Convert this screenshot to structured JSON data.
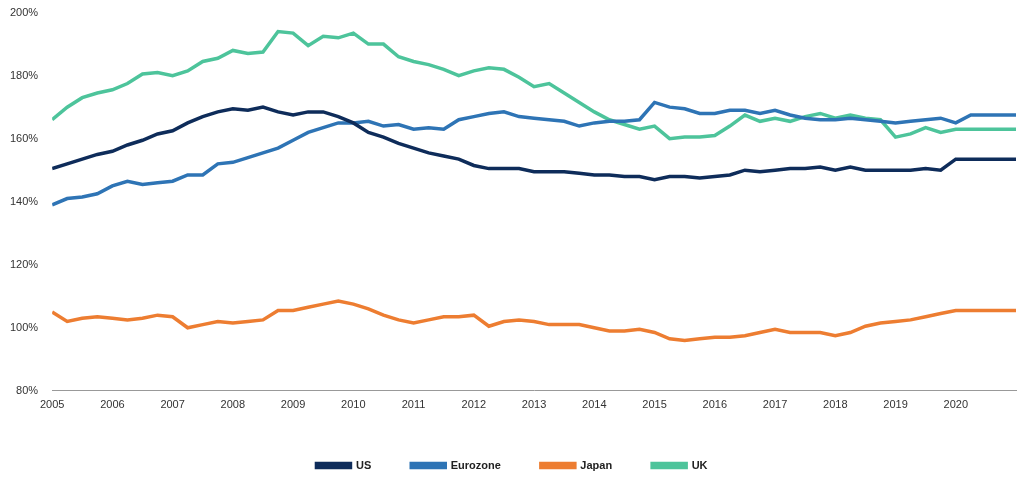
{
  "chart_data": {
    "type": "line",
    "categories": [
      "2005",
      null,
      null,
      null,
      "2006",
      null,
      null,
      null,
      "2007",
      null,
      null,
      null,
      "2008",
      null,
      null,
      null,
      "2009",
      null,
      null,
      null,
      "2010",
      null,
      null,
      null,
      "2011",
      null,
      null,
      null,
      "2012",
      null,
      null,
      null,
      "2013",
      null,
      null,
      null,
      "2014",
      null,
      null,
      null,
      "2015",
      null,
      null,
      null,
      "2016",
      null,
      null,
      null,
      "2017",
      null,
      null,
      null,
      "2018",
      null,
      null,
      null,
      "2019",
      null,
      null,
      null,
      "2020",
      null,
      null,
      null,
      null
    ],
    "series": [
      {
        "name": "US",
        "color": "#0e2c5a",
        "values": [
          150.5,
          152,
          153.5,
          155,
          156,
          158,
          159.5,
          161.5,
          162.5,
          165,
          167,
          168.5,
          169.5,
          169,
          170,
          168.5,
          167.5,
          168.5,
          168.5,
          167,
          165,
          162,
          160.5,
          158.5,
          157,
          155.5,
          154.5,
          153.5,
          151.5,
          150.5,
          150.5,
          150.5,
          149.5,
          149.5,
          149.5,
          149,
          148.5,
          148.5,
          148,
          148,
          147,
          148,
          148,
          147.5,
          148,
          148.5,
          150,
          149.5,
          150,
          150.5,
          150.5,
          151,
          150,
          151,
          150,
          150,
          150,
          150,
          150.5,
          150,
          153.5,
          153.5,
          153.5,
          153.5,
          153.5
        ]
      },
      {
        "name": "Eurozone",
        "color": "#2e74b5",
        "values": [
          139,
          141,
          141.5,
          142.5,
          145,
          146.5,
          145.5,
          146,
          146.5,
          148.5,
          148.5,
          152,
          152.5,
          154,
          155.5,
          157,
          159.5,
          162,
          163.5,
          165,
          165,
          165.5,
          164,
          164.5,
          163,
          163.5,
          163,
          166,
          167,
          168,
          168.5,
          167,
          166.5,
          166,
          165.5,
          164,
          165,
          165.5,
          165.5,
          166,
          171.5,
          170,
          169.5,
          168,
          168,
          169,
          169,
          168,
          169,
          167.5,
          166.5,
          166,
          166,
          166.5,
          166,
          165.5,
          165,
          165.5,
          166,
          166.5,
          165,
          167.5,
          167.5,
          167.5,
          167.5
        ]
      },
      {
        "name": "Japan",
        "color": "#ed7d31",
        "values": [
          105,
          102,
          103,
          103.5,
          103,
          102.5,
          103,
          104,
          103.5,
          100,
          101,
          102,
          101.5,
          102,
          102.5,
          105.5,
          105.5,
          106.5,
          107.5,
          108.5,
          107.5,
          106,
          104,
          102.5,
          101.5,
          102.5,
          103.5,
          103.5,
          104,
          100.5,
          102,
          102.5,
          102,
          101,
          101,
          101,
          100,
          99,
          99,
          99.5,
          98.5,
          96.5,
          96,
          96.5,
          97,
          97,
          97.5,
          98.5,
          99.5,
          98.5,
          98.5,
          98.5,
          97.5,
          98.5,
          100.5,
          101.5,
          102,
          102.5,
          103.5,
          104.5,
          105.5,
          105.5,
          105.5,
          105.5,
          105.5
        ]
      },
      {
        "name": "UK",
        "color": "#4dc49b",
        "values": [
          166,
          170,
          173,
          174.5,
          175.5,
          177.5,
          180.5,
          181,
          180,
          181.5,
          184.5,
          185.5,
          188,
          187,
          187.5,
          194,
          193.5,
          189.5,
          192.5,
          192,
          193.5,
          190,
          190,
          186,
          184.5,
          183.5,
          182,
          180,
          181.5,
          182.5,
          182,
          179.5,
          176.5,
          177.5,
          174.5,
          171.5,
          168.5,
          166,
          164.5,
          163,
          164,
          160,
          160.5,
          160.5,
          161,
          164,
          167.5,
          165.5,
          166.5,
          165.5,
          167,
          168,
          166.5,
          167.5,
          166.5,
          166,
          160.5,
          161.5,
          163.5,
          162,
          163,
          163,
          163,
          163,
          163
        ]
      }
    ],
    "ylim": [
      80,
      200
    ],
    "yticks": [
      {
        "value": 80,
        "label": "80%"
      },
      {
        "value": 100,
        "label": "100%"
      },
      {
        "value": 120,
        "label": "120%"
      },
      {
        "value": 140,
        "label": "140%"
      },
      {
        "value": 160,
        "label": "160%"
      },
      {
        "value": 180,
        "label": "180%"
      },
      {
        "value": 200,
        "label": "200%"
      }
    ],
    "grid": false,
    "legend": "bottom"
  }
}
